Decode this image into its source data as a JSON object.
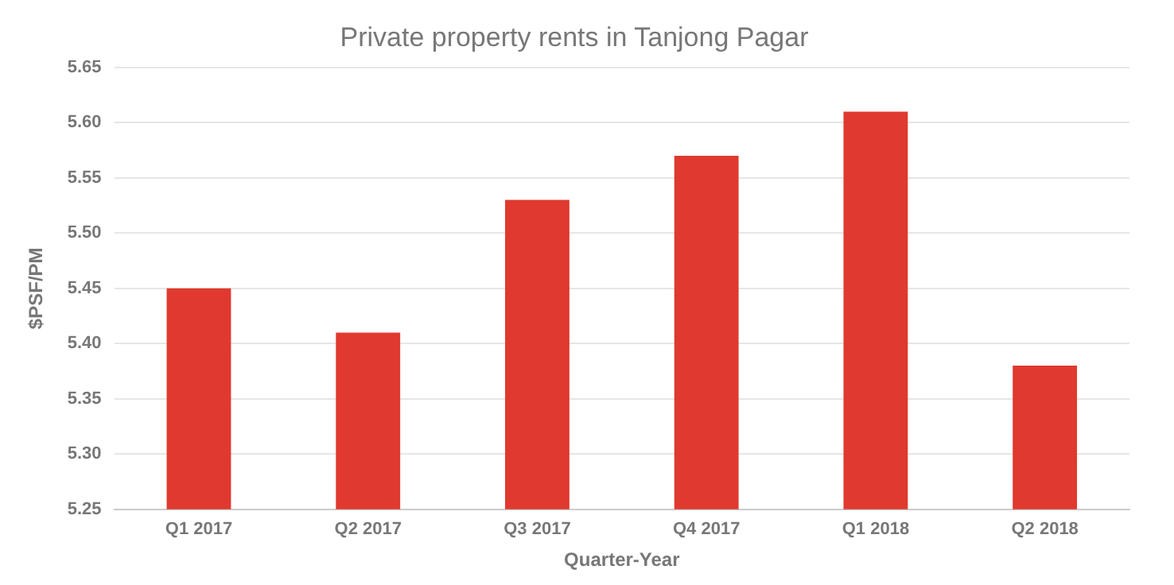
{
  "chart_data": {
    "type": "bar",
    "title": "Private property rents in Tanjong Pagar",
    "xlabel": "Quarter-Year",
    "ylabel": "$PSF/PM",
    "categories": [
      "Q1 2017",
      "Q2 2017",
      "Q3 2017",
      "Q4 2017",
      "Q1 2018",
      "Q2 2018"
    ],
    "values": [
      5.45,
      5.41,
      5.53,
      5.57,
      5.61,
      5.38
    ],
    "color": "#e0392f",
    "ylim": [
      5.25,
      5.65
    ],
    "yticks": [
      5.25,
      {
        "value": 5.3,
        "label": "5.30"
      },
      5.35,
      {
        "value": 5.4,
        "label": "5.40"
      },
      5.45,
      {
        "value": 5.5,
        "label": "5.50"
      },
      5.55,
      {
        "value": 5.6,
        "label": "5.60"
      },
      5.65
    ],
    "grid": "y"
  }
}
